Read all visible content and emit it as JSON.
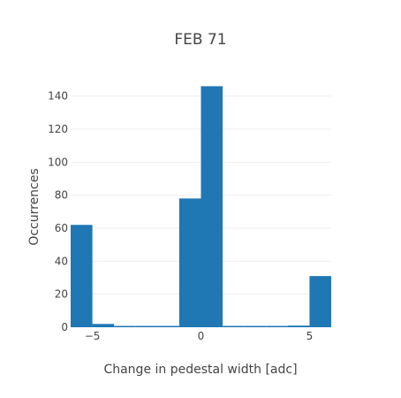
{
  "chart_data": {
    "type": "bar",
    "title": "FEB 71",
    "xlabel": "Change in pedestal width [adc]",
    "ylabel": "Occurrences",
    "xlim": [
      -6,
      6
    ],
    "ylim": [
      0,
      150
    ],
    "x_ticks": [
      {
        "value": -5,
        "label": "−5"
      },
      {
        "value": 0,
        "label": "0"
      },
      {
        "value": 5,
        "label": "5"
      }
    ],
    "y_ticks": [
      0,
      20,
      40,
      60,
      80,
      100,
      120,
      140
    ],
    "grid": true,
    "color": "#1f77b4",
    "bins": [
      {
        "x0": -6,
        "x1": -5,
        "value": 62
      },
      {
        "x0": -5,
        "x1": -4,
        "value": 2
      },
      {
        "x0": -4,
        "x1": -3,
        "value": 0
      },
      {
        "x0": -3,
        "x1": -2,
        "value": 0
      },
      {
        "x0": -2,
        "x1": -1,
        "value": 0
      },
      {
        "x0": -1,
        "x1": 0,
        "value": 78
      },
      {
        "x0": 0,
        "x1": 1,
        "value": 146
      },
      {
        "x0": 1,
        "x1": 2,
        "value": 0
      },
      {
        "x0": 2,
        "x1": 3,
        "value": 0
      },
      {
        "x0": 3,
        "x1": 4,
        "value": 0
      },
      {
        "x0": 4,
        "x1": 5,
        "value": 1
      },
      {
        "x0": 5,
        "x1": 6,
        "value": 31
      }
    ]
  }
}
